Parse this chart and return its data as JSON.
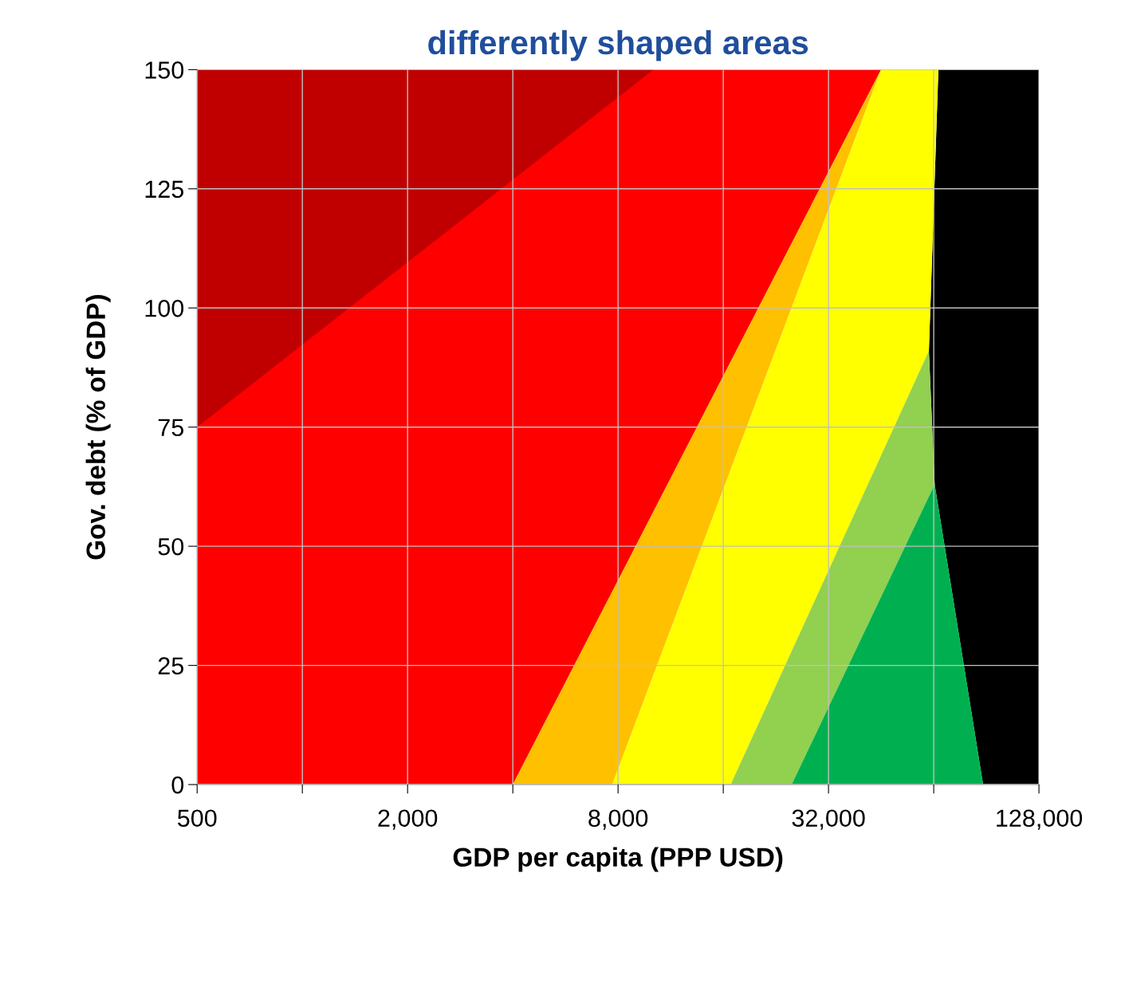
{
  "chart_data": {
    "type": "area",
    "title": "differently shaped areas",
    "xlabel": "GDP per capita (PPP USD)",
    "ylabel": "Gov. debt (% of GDP)",
    "log": "x",
    "xlim": [
      500,
      128000
    ],
    "xticks": [
      {
        "value": 500,
        "label": "500"
      },
      {
        "value": 1000,
        "label": null
      },
      {
        "value": 2000,
        "label": "2,000"
      },
      {
        "value": 4000,
        "label": null
      },
      {
        "value": 8000,
        "label": "8,000"
      },
      {
        "value": 16000,
        "label": null
      },
      {
        "value": 32000,
        "label": "32,000"
      },
      {
        "value": 64000,
        "label": null
      },
      {
        "value": 128000,
        "label": "128,000"
      }
    ],
    "ylim": [
      0,
      150
    ],
    "yticks": [
      0,
      25,
      50,
      75,
      100,
      125,
      150
    ],
    "grid": true,
    "series": [
      {
        "color": "#000000",
        "x": [
          88600,
          128000,
          128000,
          66000,
          62000,
          64400
        ],
        "values": [
          0,
          0,
          150,
          150,
          91,
          63
        ]
      },
      {
        "color": "#ff0000",
        "x": [
          500,
          4000,
          45250,
          500
        ],
        "values": [
          0,
          0,
          150,
          150
        ]
      },
      {
        "color": "#c00000",
        "x": [
          500,
          500,
          10100
        ],
        "values": [
          75,
          150,
          150
        ]
      },
      {
        "color": "#ffc000",
        "x": [
          4000,
          7700,
          45250
        ],
        "values": [
          0,
          0,
          150
        ]
      },
      {
        "color": "#ffff00",
        "x": [
          7700,
          16800,
          62000,
          66000,
          45250
        ],
        "values": [
          0,
          0,
          91,
          150,
          150
        ]
      },
      {
        "color": "#92d050",
        "x": [
          16800,
          25100,
          64400,
          62000
        ],
        "values": [
          0,
          0,
          63,
          91
        ]
      },
      {
        "color": "#00b050",
        "x": [
          25100,
          88600,
          64400
        ],
        "values": [
          0,
          0,
          63
        ]
      }
    ]
  }
}
